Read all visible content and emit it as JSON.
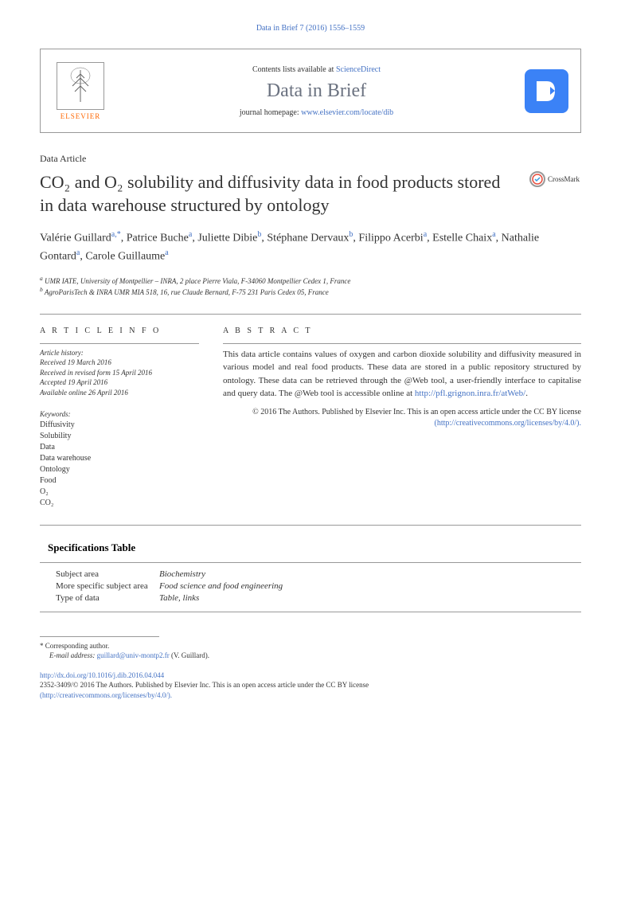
{
  "top_reference": "Data in Brief 7 (2016) 1556–1559",
  "header": {
    "publisher": "ELSEVIER",
    "contents_prefix": "Contents lists available at ",
    "contents_link": "ScienceDirect",
    "journal_name": "Data in Brief",
    "homepage_prefix": "journal homepage: ",
    "homepage_url": "www.elsevier.com/locate/dib",
    "logo_letter": "D"
  },
  "article_type": "Data Article",
  "title": "CO₂ and O₂ solubility and diffusivity data in food products stored in data warehouse structured by ontology",
  "crossmark_label": "CrossMark",
  "authors": [
    {
      "name": "Valérie Guillard",
      "affil": "a,*"
    },
    {
      "name": "Patrice Buche",
      "affil": "a"
    },
    {
      "name": "Juliette Dibie",
      "affil": "b"
    },
    {
      "name": "Stéphane Dervaux",
      "affil": "b"
    },
    {
      "name": "Filippo Acerbi",
      "affil": "a"
    },
    {
      "name": "Estelle Chaix",
      "affil": "a"
    },
    {
      "name": "Nathalie Gontard",
      "affil": "a"
    },
    {
      "name": "Carole Guillaume",
      "affil": "a"
    }
  ],
  "affiliations": {
    "a": "UMR IATE, University of Montpellier – INRA, 2 place Pierre Viala, F-34060 Montpellier Cedex 1, France",
    "b": "AgroParisTech & INRA UMR MIA 518, 16, rue Claude Bernard, F-75 231 Paris Cedex 05, France"
  },
  "article_info": {
    "heading": "A R T I C L E  I N F O",
    "history_label": "Article history:",
    "received": "Received 19 March 2016",
    "revised": "Received in revised form 15 April 2016",
    "accepted": "Accepted 19 April 2016",
    "online": "Available online 26 April 2016",
    "keywords_label": "Keywords:",
    "keywords": [
      "Diffusivity",
      "Solubility",
      "Data",
      "Data warehouse",
      "Ontology",
      "Food",
      "O₂",
      "CO₂"
    ]
  },
  "abstract": {
    "heading": "A B S T R A C T",
    "text": "This data article contains values of oxygen and carbon dioxide solubility and diffusivity measured in various model and real food products. These data are stored in a public repository structured by ontology. These data can be retrieved through the @Web tool, a user-friendly interface to capitalise and query data. The @Web tool is accessible online at ",
    "url": "http://pfl.grignon.inra.fr/atWeb/",
    "copyright": "© 2016 The Authors. Published by Elsevier Inc. This is an open access article under the CC BY license",
    "license_url": "(http://creativecommons.org/licenses/by/4.0/)."
  },
  "specifications": {
    "heading": "Specifications Table",
    "rows": [
      {
        "label": "Subject area",
        "value": "Biochemistry"
      },
      {
        "label": "More specific subject area",
        "value": "Food science and food engineering"
      },
      {
        "label": "Type of data",
        "value": "Table, links"
      }
    ]
  },
  "footer": {
    "corresponding": "* Corresponding author.",
    "email_label": "E-mail address: ",
    "email": "guillard@univ-montp2.fr",
    "email_author": " (V. Guillard).",
    "doi": "http://dx.doi.org/10.1016/j.dib.2016.04.044",
    "issn_line": "2352-3409/© 2016 The Authors. Published by Elsevier Inc. This is an open access article under the CC BY license",
    "license_url": "(http://creativecommons.org/licenses/by/4.0/)."
  },
  "colors": {
    "link_blue": "#4472c4",
    "elsevier_orange": "#ff6600",
    "dib_blue": "#3b82f6",
    "text": "#333333",
    "border": "#999999"
  }
}
